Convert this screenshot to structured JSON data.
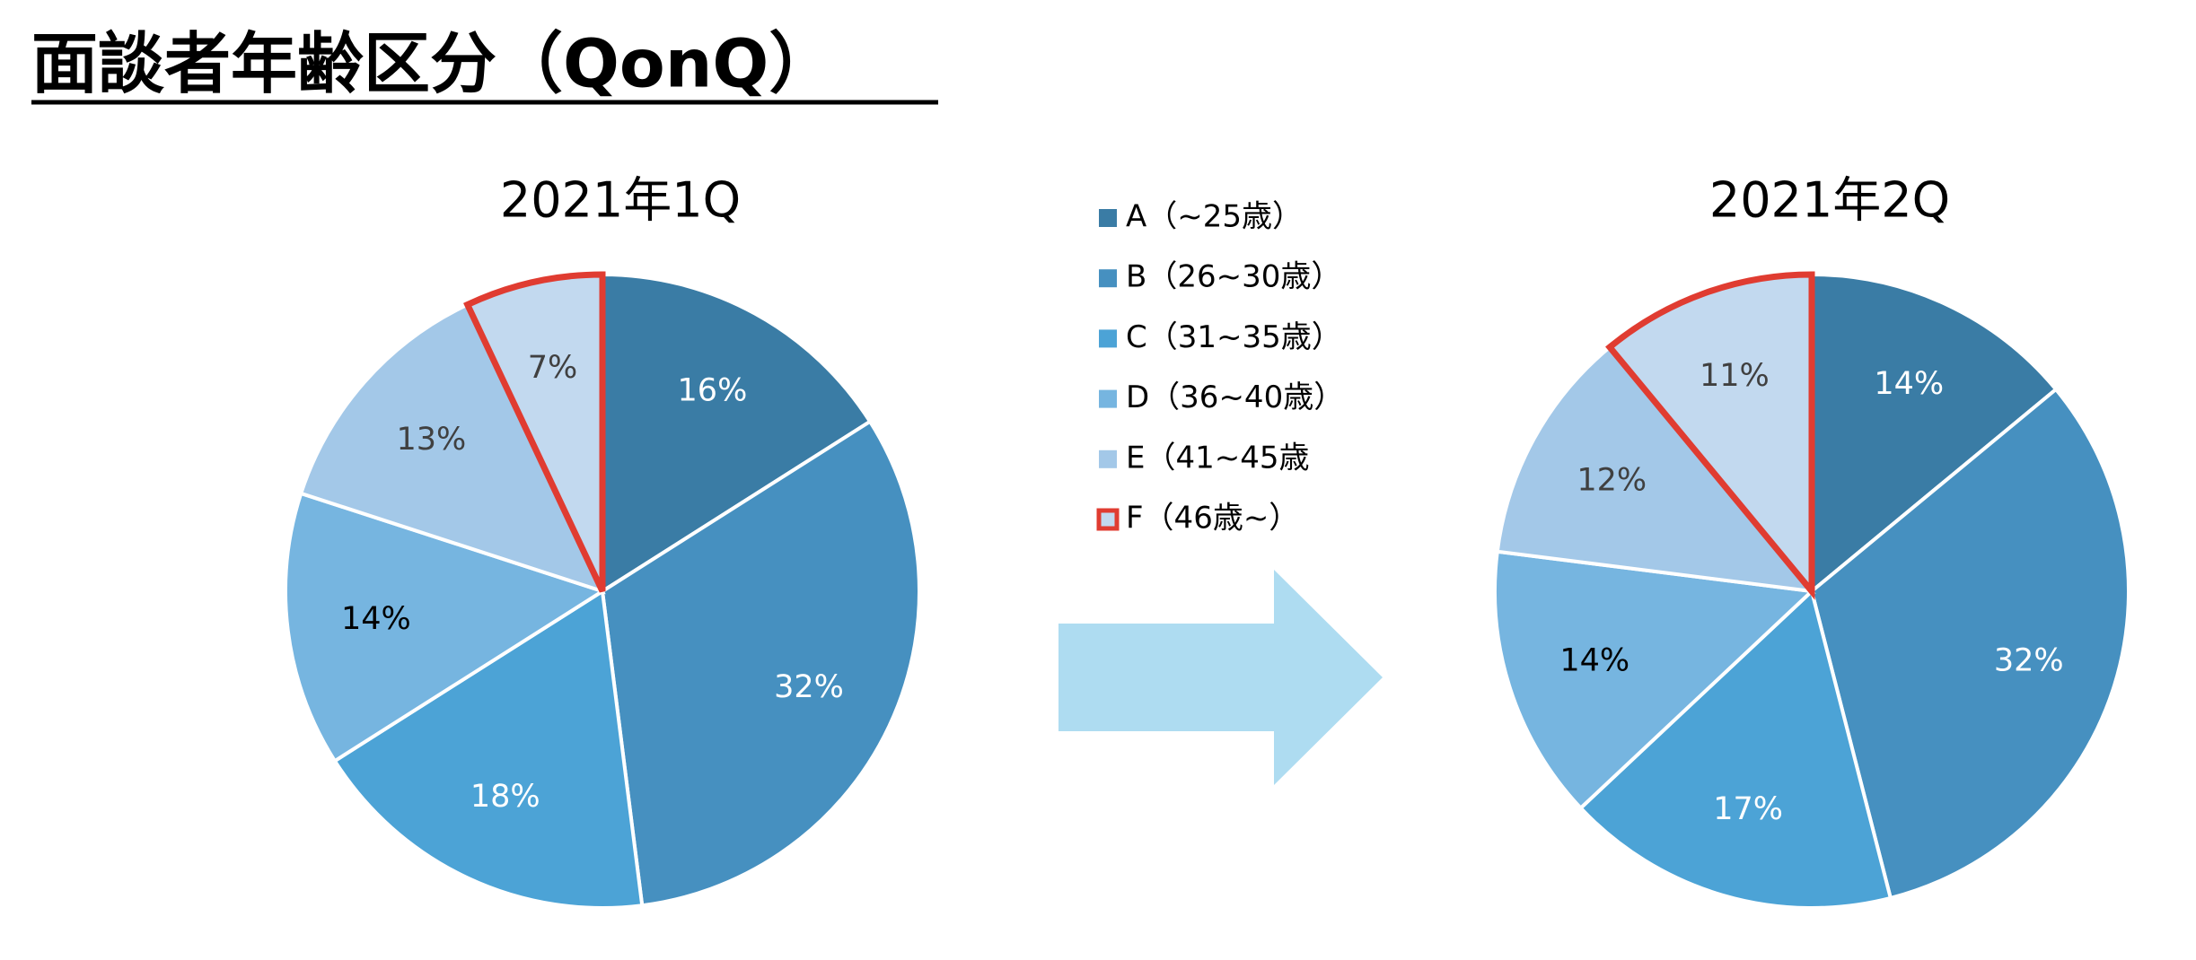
{
  "title": "面談者年齢区分（QonQ）",
  "chart_data": [
    {
      "type": "pie",
      "title": "2021年1Q",
      "categories": [
        "A（~25歳）",
        "B（26~30歳）",
        "C（31~35歳）",
        "D（36~40歳）",
        "E（41~45歳",
        "F（46歳~）"
      ],
      "values": [
        16,
        32,
        18,
        14,
        13,
        7
      ],
      "value_labels": [
        "16%",
        "32%",
        "18%",
        "14%",
        "13%",
        "7%"
      ],
      "colors": [
        "#3a7ca5",
        "#4690c0",
        "#4ca3d6",
        "#76b5e0",
        "#a3c8e8",
        "#c2d9ef"
      ],
      "label_colors": [
        "#ffffff",
        "#ffffff",
        "#ffffff",
        "#000000",
        "#404040",
        "#404040"
      ],
      "outlined": [
        false,
        false,
        false,
        false,
        false,
        true
      ],
      "outline_color": "#e03c31"
    },
    {
      "type": "pie",
      "title": "2021年2Q",
      "categories": [
        "A（~25歳）",
        "B（26~30歳）",
        "C（31~35歳）",
        "D（36~40歳）",
        "E（41~45歳",
        "F（46歳~）"
      ],
      "values": [
        14,
        32,
        17,
        14,
        12,
        11
      ],
      "value_labels": [
        "14%",
        "32%",
        "17%",
        "14%",
        "12%",
        "11%"
      ],
      "colors": [
        "#3a7ca5",
        "#4690c0",
        "#4ca3d6",
        "#76b5e0",
        "#a3c8e8",
        "#c2d9ef"
      ],
      "label_colors": [
        "#ffffff",
        "#ffffff",
        "#ffffff",
        "#000000",
        "#404040",
        "#404040"
      ],
      "outlined": [
        false,
        false,
        false,
        false,
        false,
        true
      ],
      "outline_color": "#e03c31"
    }
  ]
}
